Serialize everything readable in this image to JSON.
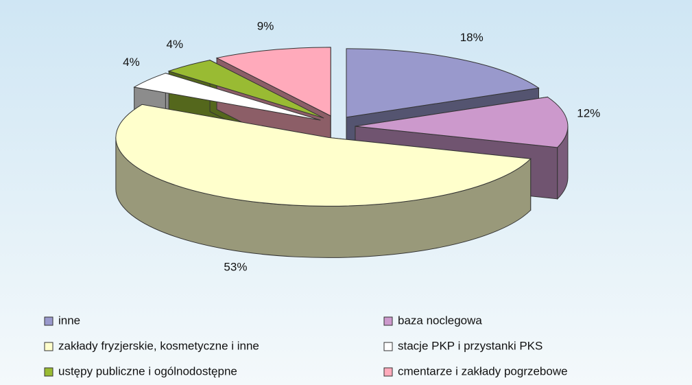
{
  "chart_data": {
    "type": "pie",
    "categories": [
      "inne",
      "baza noclegowa",
      "zakłady fryzjerskie, kosmetyczne i inne",
      "stacje PKP i przystanki PKS",
      "ustępy publiczne i ogólnodostępne",
      "cmentarze i zakłady pogrzebowe"
    ],
    "values": [
      18,
      12,
      53,
      4,
      4,
      9
    ],
    "value_labels": [
      "18%",
      "12%",
      "53%",
      "4%",
      "4%",
      "9%"
    ],
    "colors": [
      "#9999cc",
      "#cc99cc",
      "#ffffcc",
      "#ffffff",
      "#99bb33",
      "#ffaabb"
    ],
    "legend": "bottom"
  }
}
